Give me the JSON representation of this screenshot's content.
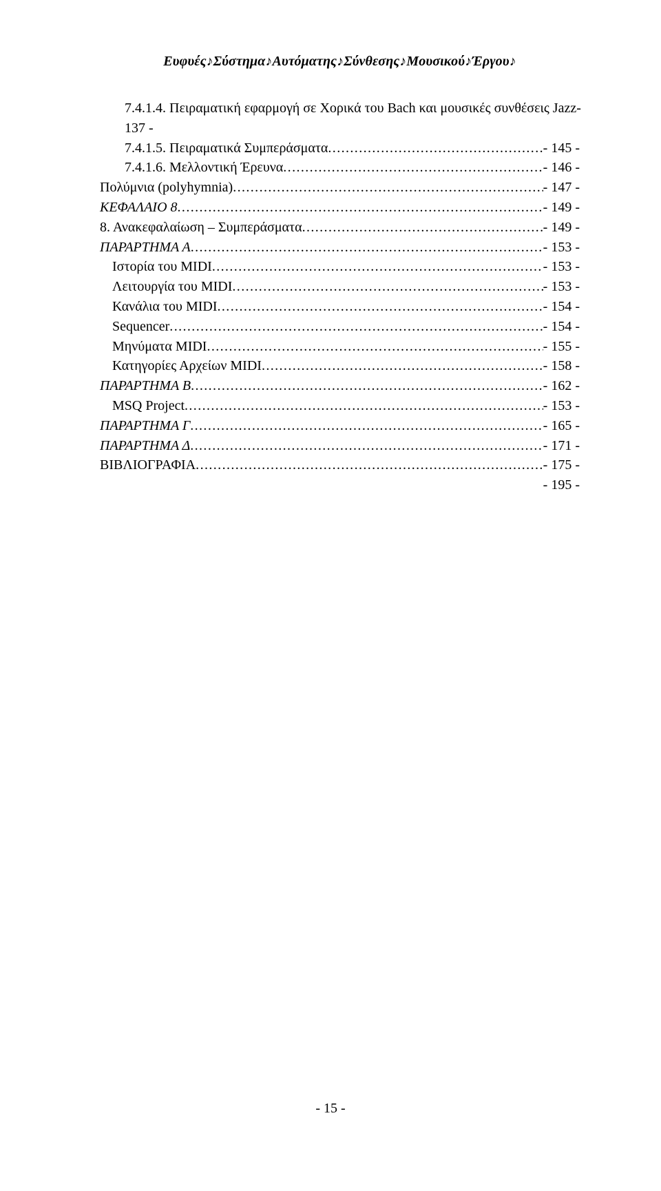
{
  "header": {
    "title": "Ευφυές♪Σύστημα♪Αυτόματης♪Σύνθεσης♪Μουσικού♪Έργου♪"
  },
  "toc": [
    {
      "indent": 36,
      "label": "7.4.1.4.    Πειραματική εφαρμογή σε Χορικά του Bach και μουσικές συνθέσεις Jazz",
      "page": "-",
      "italic": false,
      "wrap": true,
      "wrap_text": "137 -"
    },
    {
      "indent": 36,
      "label": "7.4.1.5.    Πειραματικά Συμπεράσματα",
      "page": "- 145 -",
      "italic": false
    },
    {
      "indent": 36,
      "label": "7.4.1.6.    Μελλοντική Έρευνα",
      "page": "- 146 -",
      "italic": false
    },
    {
      "indent": 0,
      "label": "Πολύμνια (polyhymnia)",
      "page": "- 147 -",
      "italic": false
    },
    {
      "indent": 0,
      "label": "ΚΕΦΑΛΑΙΟ 8",
      "page": "- 149 -",
      "italic": true
    },
    {
      "indent": 0,
      "label": "8.      Ανακεφαλαίωση – Συμπεράσματα",
      "page": "- 149 -",
      "italic": false
    },
    {
      "indent": 0,
      "label": "ΠΑΡΑΡΤΗΜΑ Α",
      "page": "- 153 -",
      "italic": true
    },
    {
      "indent": 18,
      "label": "Ιστορία του MIDI",
      "page": "- 153 -",
      "italic": false
    },
    {
      "indent": 18,
      "label": "Λειτουργία του MIDI",
      "page": "- 153 -",
      "italic": false
    },
    {
      "indent": 18,
      "label": "Κανάλια του MIDI",
      "page": "- 154 -",
      "italic": false
    },
    {
      "indent": 18,
      "label": "Sequencer",
      "page": "- 154 -",
      "italic": false
    },
    {
      "indent": 18,
      "label": "Μηνύματα MIDI",
      "page": "- 155 -",
      "italic": false
    },
    {
      "indent": 18,
      "label": "Κατηγορίες Αρχείων MIDI",
      "page": "- 158 -",
      "italic": false
    },
    {
      "indent": 0,
      "label": "ΠΑΡΑΡΤΗΜΑ Β",
      "page": "- 162 -",
      "italic": true
    },
    {
      "indent": 18,
      "label": "MSQ Project",
      "page": "- 153 -",
      "italic": false
    },
    {
      "indent": 0,
      "label": "ΠΑΡΑΡΤΗΜΑ Γ",
      "page": "- 165 -",
      "italic": true
    },
    {
      "indent": 0,
      "label": "ΠΑΡΑΡΤΗΜΑ Δ",
      "page": "- 171 -",
      "italic": true
    },
    {
      "indent": 0,
      "label": "ΒΙΒΛΙΟΓΡΑΦΙΑ",
      "page": "- 175 -",
      "italic": false,
      "final": "- 195 -"
    }
  ],
  "footer": {
    "page_number": "- 15 -"
  }
}
